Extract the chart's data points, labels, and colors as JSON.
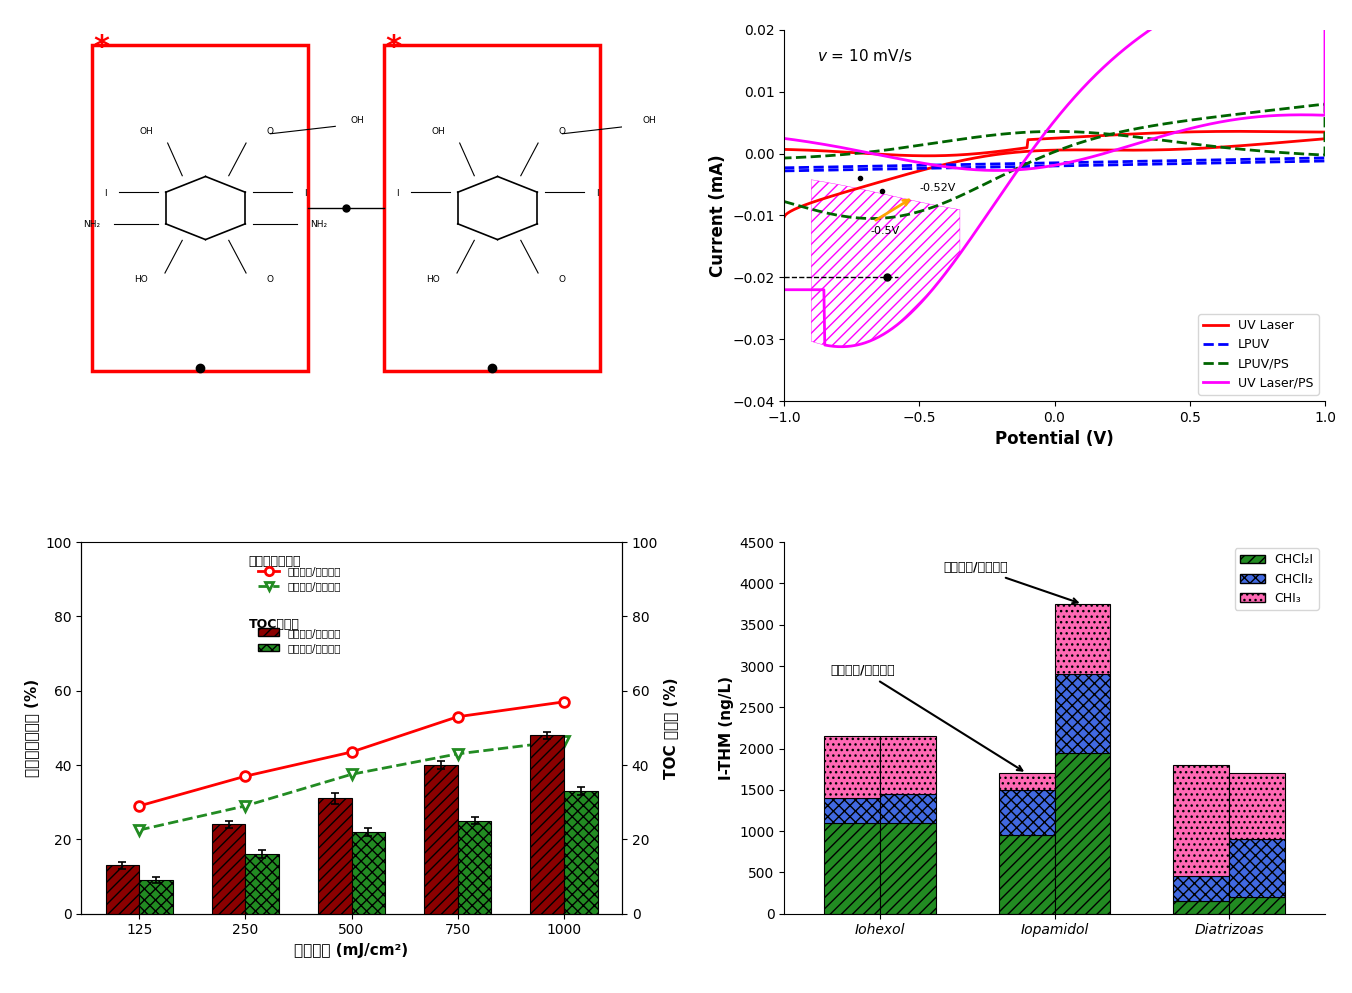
{
  "cv_xlabel": "Potential (V)",
  "cv_ylabel": "Current (mA)",
  "cv_annotation": "v = 10 mV/s",
  "bar_xlabel": "紫外剂量 (mJ/cm²)",
  "bar_ylabel_left": "过硫酸盐消耗量 (%)",
  "bar_ylabel_right": "TOC 去除率 (%)",
  "bar_categories": [
    "125",
    "250",
    "500",
    "750",
    "1000"
  ],
  "bar_laser_ps_line": [
    29,
    37,
    43.5,
    53,
    57
  ],
  "bar_lpuv_ps_line": [
    22.5,
    29,
    37.5,
    43,
    46.5
  ],
  "bar_laser_ps_bar": [
    13,
    24,
    31,
    40,
    48
  ],
  "bar_lpuv_ps_bar": [
    9,
    16,
    22,
    25,
    33
  ],
  "bar_laser_ps_err": [
    1.0,
    1.0,
    1.5,
    1.0,
    1.0
  ],
  "bar_lpuv_ps_err": [
    0.8,
    1.0,
    1.0,
    1.0,
    1.0
  ],
  "bar_label_line": "过硫酸盐消耗量",
  "bar_label_bar": "TOC去除率",
  "bar_legend_line1": "激光紫外/过硫酸盐",
  "bar_legend_line2": "低压紫外/过硫酸盐",
  "bar_legend_bar1": "激光紫外/过硫酸盐",
  "bar_legend_bar2": "低压紫外/过硫酸盐",
  "thm_categories": [
    "Iohexol",
    "Iopamidol",
    "Diatrizoas"
  ],
  "thm_ylabel": "I-THM (ng/L)",
  "thm_ylim": [
    0,
    4500
  ],
  "thm_annot1": "低压紫外/过硫酸盐",
  "thm_annot2": "激光紫外/过硫酸盐",
  "thm_laser_chcl2i": [
    1100,
    950,
    150
  ],
  "thm_laser_chcli2": [
    300,
    550,
    300
  ],
  "thm_laser_chi3": [
    750,
    200,
    1350
  ],
  "thm_lpuv_chcl2i": [
    1100,
    1950,
    200
  ],
  "thm_lpuv_chcli2": [
    350,
    950,
    700
  ],
  "thm_lpuv_chi3": [
    700,
    850,
    800
  ],
  "color_green": "#228B22",
  "color_blue": "#4169E1",
  "color_pink": "#FF69B4",
  "legend_chcl2i": "CHCl₂I",
  "legend_chcli2": "CHClI₂",
  "legend_chi3": "CHI₃"
}
